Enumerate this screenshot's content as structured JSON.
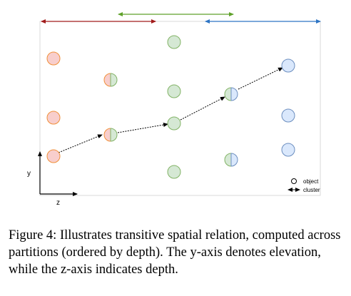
{
  "figure": {
    "axes": {
      "y_label": "y",
      "z_label": "z"
    },
    "legend": {
      "object_label": "object",
      "cluster_label": "cluster"
    },
    "colors": {
      "red_partition": "#a11b1b",
      "green_partition": "#5fa12a",
      "blue_partition": "#2e75c4",
      "red_fill": "#f8cecc",
      "red_stroke": "#f0903a",
      "green_fill": "#d5e8d4",
      "green_stroke": "#82b366",
      "blue_fill": "#dae8fc",
      "blue_stroke": "#6c8ebf"
    }
  },
  "caption": {
    "text": "Figure 4: Illustrates transitive spatial relation, computed across partitions (ordered by depth). The y-axis denotes elevation, while the z-axis indicates depth."
  }
}
